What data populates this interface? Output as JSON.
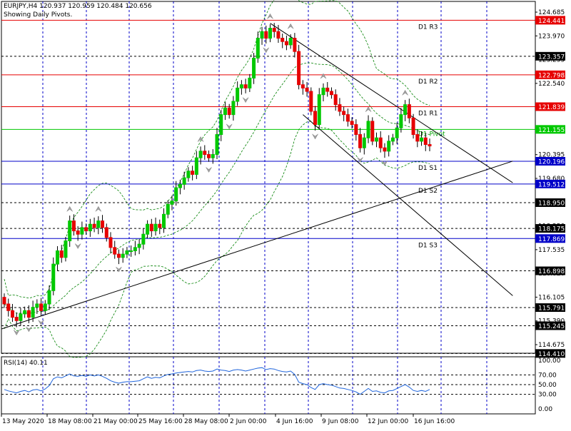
{
  "header": {
    "symbol_line": "EURJPY,H4  120.937 120.959 120.484 120.656",
    "subtitle": "Showing Daily Pivots."
  },
  "rsi_panel": {
    "label": "RSI(14) 40.11",
    "ticks": [
      "100.00",
      "70.00",
      "50.00",
      "30.00",
      "0.00"
    ],
    "levels": [
      70,
      50,
      30
    ],
    "current": 40.11,
    "color": "#1e64dc"
  },
  "chart_data": [
    {
      "type": "candlestick",
      "title": "EURJPY,H4  120.937 120.959 120.484 120.656",
      "subtitle": "Showing Daily Pivots.",
      "xlabel": "",
      "ylabel": "",
      "ylim": [
        114.2,
        124.8
      ],
      "x_tick_labels": [
        "13 May 2020",
        "18 May 08:00",
        "21 May 00:00",
        "25 May 16:00",
        "28 May 08:00",
        "2 Jun 00:00",
        "4 Jun 16:00",
        "9 Jun 08:00",
        "12 Jun 00:00",
        "16 Jun 16:00"
      ],
      "y_tick_labels": [
        124.685,
        123.97,
        123.255,
        122.54,
        121.825,
        121.11,
        120.395,
        119.68,
        118.965,
        118.25,
        117.535,
        116.82,
        116.105,
        115.39,
        114.675
      ],
      "last_price": {
        "open": 120.937,
        "high": 120.959,
        "low": 120.484,
        "close": 120.656
      },
      "close_series": [
        115.9,
        115.7,
        115.5,
        115.4,
        115.6,
        115.7,
        115.5,
        115.8,
        115.9,
        115.7,
        115.9,
        116.3,
        117.1,
        117.5,
        117.3,
        117.8,
        118.4,
        118.1,
        118.0,
        118.2,
        118.1,
        118.3,
        118.2,
        118.4,
        118.2,
        117.9,
        117.6,
        117.4,
        117.3,
        117.4,
        117.5,
        117.5,
        117.6,
        117.7,
        118.0,
        118.3,
        118.1,
        118.3,
        118.2,
        118.6,
        118.9,
        119.0,
        119.4,
        119.5,
        119.7,
        119.9,
        119.8,
        120.3,
        120.5,
        120.4,
        120.3,
        120.4,
        121.0,
        121.6,
        121.8,
        121.6,
        122.0,
        122.4,
        122.5,
        122.4,
        122.7,
        123.3,
        123.9,
        124.1,
        123.9,
        124.2,
        124.1,
        123.9,
        123.8,
        123.7,
        123.9,
        123.5,
        122.5,
        122.4,
        122.3,
        121.7,
        121.3,
        122.2,
        122.4,
        122.3,
        122.2,
        121.9,
        121.7,
        121.6,
        121.4,
        121.3,
        121.0,
        120.6,
        120.9,
        121.4,
        120.8,
        120.9,
        120.6,
        120.5,
        120.8,
        120.9,
        121.2,
        121.6,
        121.9,
        121.5,
        121.0,
        120.8,
        120.9,
        120.7,
        120.656
      ],
      "candle_colors": {
        "up": "#00c800",
        "down": "#e60000",
        "wick": "#000000"
      },
      "pivot_levels": [
        {
          "label": "D1 R3",
          "value": 124.441,
          "color": "#e60000"
        },
        {
          "label": "D1 R2",
          "value": 122.798,
          "color": "#e60000"
        },
        {
          "label": "D1 R1",
          "value": 121.839,
          "color": "#e60000"
        },
        {
          "label": "D1 Pivot",
          "value": 121.155,
          "color": "#00c800"
        },
        {
          "label": "D1 S1",
          "value": 120.196,
          "color": "#0000c8"
        },
        {
          "label": "D1 S2",
          "value": 119.512,
          "color": "#0000c8"
        },
        {
          "label": "D1 S3",
          "value": 117.869,
          "color": "#0000c8"
        }
      ],
      "horizontal_levels": [
        123.357,
        118.95,
        118.175,
        116.898,
        115.791,
        115.245,
        114.41
      ],
      "price_tags": [
        {
          "value": 124.441,
          "text": "124.441",
          "fill": "#e60000"
        },
        {
          "value": 123.357,
          "text": "123.357",
          "fill": "#000000"
        },
        {
          "value": 122.798,
          "text": "122.798",
          "fill": "#e60000"
        },
        {
          "value": 121.839,
          "text": "121.839",
          "fill": "#e60000"
        },
        {
          "value": 121.155,
          "text": "121.155",
          "fill": "#00c800"
        },
        {
          "value": 120.196,
          "text": "120.196",
          "fill": "#0000c8"
        },
        {
          "value": 119.512,
          "text": "119.512",
          "fill": "#0000c8"
        },
        {
          "value": 118.95,
          "text": "118.950",
          "fill": "#000000"
        },
        {
          "value": 118.175,
          "text": "118.175",
          "fill": "#000000"
        },
        {
          "value": 117.869,
          "text": "117.869",
          "fill": "#0000c8"
        },
        {
          "value": 116.898,
          "text": "116.898",
          "fill": "#000000"
        },
        {
          "value": 115.791,
          "text": "115.791",
          "fill": "#000000"
        },
        {
          "value": 115.245,
          "text": "115.245",
          "fill": "#000000"
        },
        {
          "value": 114.41,
          "text": "114.410",
          "fill": "#000000"
        }
      ],
      "overlays": [
        "Bollinger Bands",
        "Fractals",
        "Trendlines"
      ],
      "grid": true
    },
    {
      "type": "line",
      "title": "RSI(14) 40.11",
      "ylim": [
        0,
        100
      ],
      "y_tick_labels": [
        "100.00",
        "70.00",
        "50.00",
        "30.00",
        "0.00"
      ],
      "levels": [
        70,
        50,
        30
      ],
      "series": [
        {
          "name": "RSI(14)",
          "values": [
            40,
            37,
            35,
            33,
            36,
            38,
            35,
            39,
            40,
            37,
            41,
            48,
            62,
            66,
            64,
            68,
            72,
            68,
            67,
            69,
            67,
            70,
            68,
            70,
            67,
            63,
            58,
            55,
            53,
            55,
            56,
            56,
            57,
            58,
            62,
            66,
            63,
            65,
            64,
            68,
            71,
            72,
            74,
            75,
            76,
            77,
            76,
            79,
            80,
            78,
            77,
            78,
            82,
            80,
            79,
            77,
            80,
            81,
            80,
            78,
            80,
            82,
            84,
            85,
            81,
            83,
            82,
            79,
            77,
            76,
            78,
            71,
            55,
            52,
            50,
            44,
            40,
            50,
            52,
            50,
            49,
            46,
            43,
            42,
            40,
            38,
            35,
            30,
            36,
            42,
            36,
            37,
            34,
            33,
            37,
            38,
            42,
            46,
            50,
            45,
            38,
            36,
            38,
            36,
            40
          ]
        }
      ],
      "grid": true
    }
  ]
}
